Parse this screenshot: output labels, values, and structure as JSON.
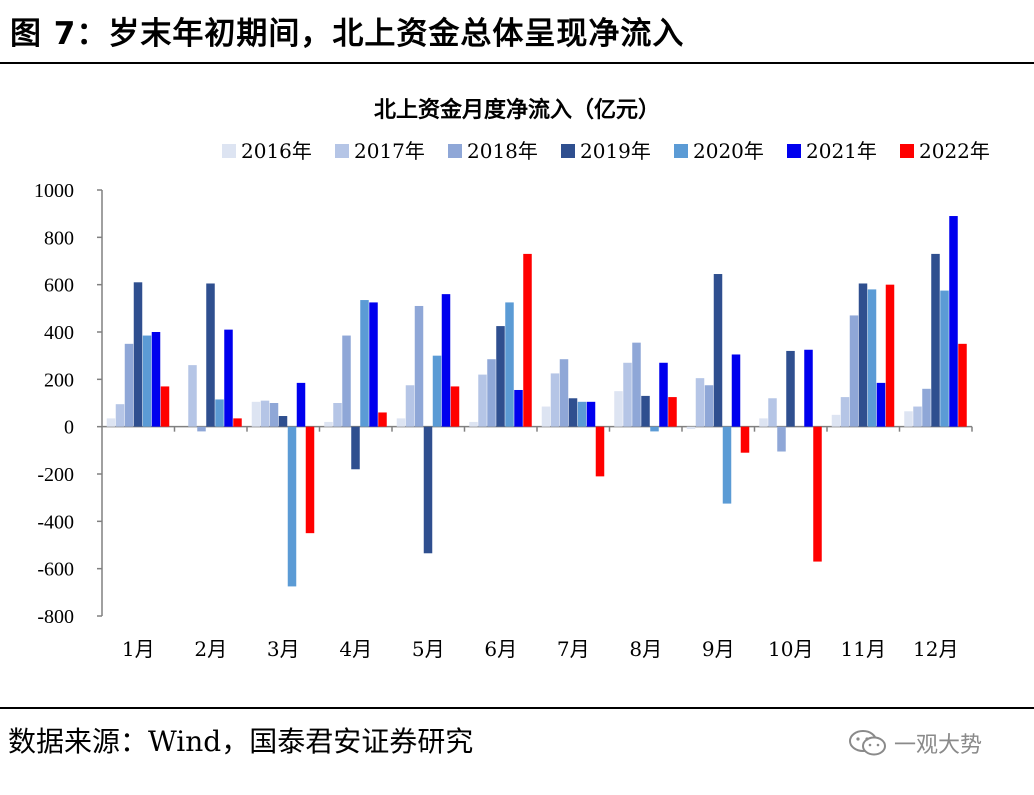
{
  "figure_title": "图 7：岁末年初期间，北上资金总体呈现净流入",
  "source": "数据来源：Wind，国泰君安证券研究",
  "watermark": {
    "icon": "wechat-icon",
    "text": "一观大势"
  },
  "colors": {
    "2016年": "#dde4f2",
    "2017年": "#b5c5e6",
    "2018年": "#8fa7d7",
    "2019年": "#2f4f8f",
    "2020年": "#5b9bd5",
    "2021年": "#0000ee",
    "2022年": "#ff0000",
    "axis": "#808080"
  },
  "chart_data": {
    "type": "bar",
    "title": "北上资金月度净流入（亿元）",
    "xlabel": "",
    "ylabel": "",
    "ylim": [
      -800,
      1000
    ],
    "yticks": [
      1000,
      800,
      600,
      400,
      200,
      0,
      -200,
      -400,
      -600,
      -800
    ],
    "legend_position": "top",
    "categories": [
      "1月",
      "2月",
      "3月",
      "4月",
      "5月",
      "6月",
      "7月",
      "8月",
      "9月",
      "10月",
      "11月",
      "12月"
    ],
    "series": [
      {
        "name": "2016年",
        "values": [
          35,
          0,
          105,
          20,
          35,
          20,
          85,
          150,
          -10,
          35,
          50,
          65
        ]
      },
      {
        "name": "2017年",
        "values": [
          95,
          260,
          110,
          100,
          175,
          220,
          225,
          270,
          205,
          120,
          125,
          85
        ]
      },
      {
        "name": "2018年",
        "values": [
          350,
          -20,
          100,
          385,
          510,
          285,
          285,
          355,
          175,
          -105,
          470,
          160
        ]
      },
      {
        "name": "2019年",
        "values": [
          610,
          605,
          45,
          -180,
          -535,
          425,
          120,
          130,
          645,
          320,
          605,
          730
        ]
      },
      {
        "name": "2020年",
        "values": [
          385,
          115,
          -675,
          535,
          300,
          525,
          105,
          -20,
          -325,
          0,
          580,
          575
        ]
      },
      {
        "name": "2021年",
        "values": [
          400,
          410,
          185,
          525,
          560,
          155,
          105,
          270,
          305,
          325,
          185,
          890
        ]
      },
      {
        "name": "2022年",
        "values": [
          170,
          35,
          -450,
          60,
          170,
          730,
          -210,
          125,
          -110,
          -570,
          600,
          350
        ]
      }
    ]
  }
}
